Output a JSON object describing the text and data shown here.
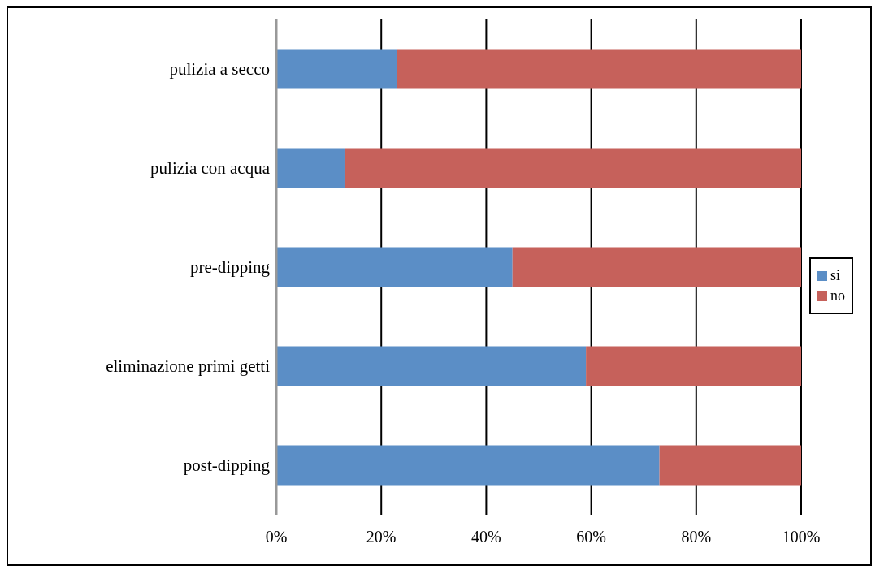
{
  "chart_data": {
    "type": "bar",
    "orientation": "horizontal",
    "stacked": true,
    "categories": [
      "pulizia a secco",
      "pulizia con acqua",
      "pre-dipping",
      "eliminazione primi getti",
      "post-dipping"
    ],
    "series": [
      {
        "name": "si",
        "color": "#5b8ec6",
        "values": [
          23,
          13,
          45,
          59,
          73
        ]
      },
      {
        "name": "no",
        "color": "#c6615b",
        "values": [
          77,
          87,
          55,
          41,
          27
        ]
      }
    ],
    "xlim": [
      0,
      100
    ],
    "xticks": [
      {
        "value": 0,
        "label": "0%"
      },
      {
        "value": 20,
        "label": "20%"
      },
      {
        "value": 40,
        "label": "40%"
      },
      {
        "value": 60,
        "label": "60%"
      },
      {
        "value": 80,
        "label": "80%"
      },
      {
        "value": 100,
        "label": "100%"
      }
    ],
    "grid": "x",
    "legend": "right"
  }
}
